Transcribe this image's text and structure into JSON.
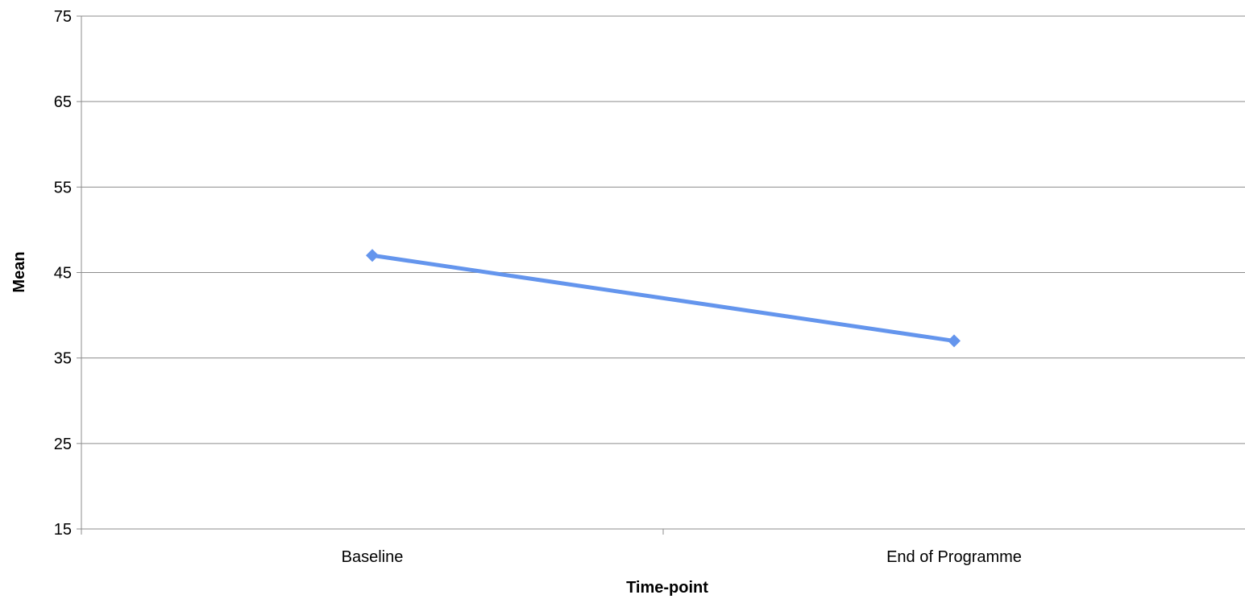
{
  "chart_data": {
    "type": "line",
    "categories": [
      "Baseline",
      "End of Programme"
    ],
    "series": [
      {
        "values": [
          47,
          37
        ],
        "color": "#6495ED",
        "marker": "diamond"
      }
    ],
    "title": "",
    "xlabel": "Time-point",
    "ylabel": "Mean",
    "ylim": [
      15,
      75
    ],
    "yticks": [
      15,
      25,
      35,
      45,
      55,
      65,
      75
    ],
    "grid": true,
    "legend": "none"
  }
}
